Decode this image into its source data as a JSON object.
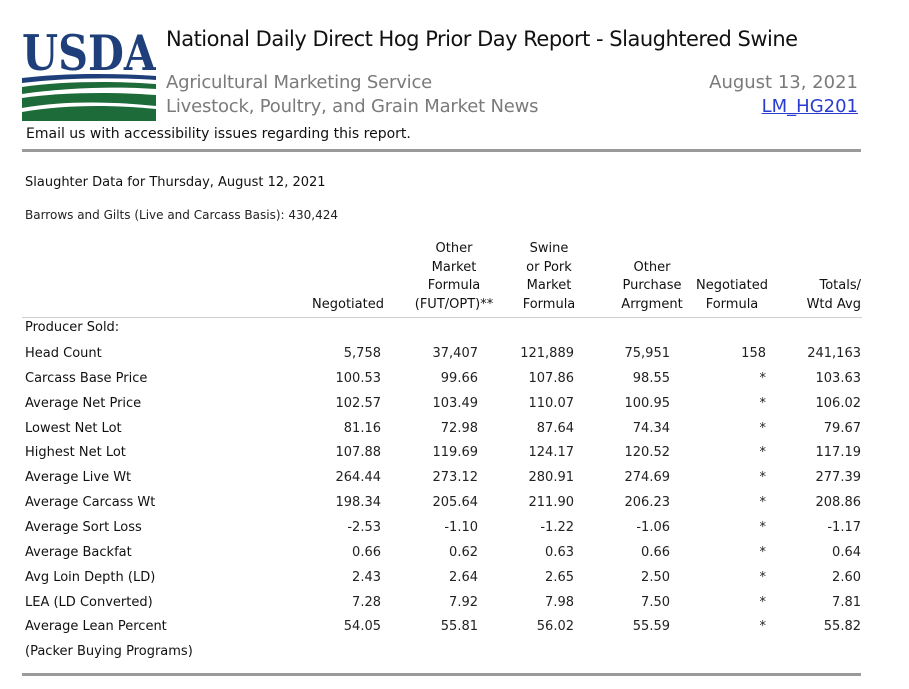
{
  "header": {
    "logo_text": "USDA",
    "title": "National Daily Direct Hog Prior Day Report - Slaughtered Swine",
    "agency": "Agricultural Marketing Service",
    "division": "Livestock, Poultry, and Grain Market News",
    "date": "August 13, 2021",
    "report_id": "LM_HG201",
    "email_note": "Email us with accessibility issues regarding this report."
  },
  "colors": {
    "usda_blue": "#1f3f7a",
    "usda_green": "#1e6b3a",
    "link_blue": "#2a3bd0",
    "muted_gray": "#7a7a7a",
    "rule_gray": "#9a9a9a"
  },
  "section_title": "Slaughter Data for Thursday, August 12, 2021",
  "barrows_gilts": "Barrows and Gilts (Live and Carcass Basis): 430,424",
  "columns": [
    [
      "Negotiated"
    ],
    [
      "Other",
      "Market",
      "Formula",
      "(FUT/OPT)**"
    ],
    [
      "Swine",
      "or Pork",
      "Market",
      "Formula"
    ],
    [
      "Other",
      "Purchase",
      "Arrgment"
    ],
    [
      "Negotiated",
      "Formula"
    ],
    [
      "Totals/",
      "Wtd Avg"
    ]
  ],
  "group_label": "Producer Sold:",
  "rows": [
    {
      "label": "Head Count",
      "values": [
        "5,758",
        "37,407",
        "121,889",
        "75,951",
        "158",
        "241,163"
      ]
    },
    {
      "label": "Carcass Base Price",
      "values": [
        "100.53",
        "99.66",
        "107.86",
        "98.55",
        "*",
        "103.63"
      ]
    },
    {
      "label": "Average Net Price",
      "values": [
        "102.57",
        "103.49",
        "110.07",
        "100.95",
        "*",
        "106.02"
      ]
    },
    {
      "label": "Lowest Net Lot",
      "values": [
        "81.16",
        "72.98",
        "87.64",
        "74.34",
        "*",
        "79.67"
      ]
    },
    {
      "label": "Highest Net Lot",
      "values": [
        "107.88",
        "119.69",
        "124.17",
        "120.52",
        "*",
        "117.19"
      ]
    },
    {
      "label": "Average Live Wt",
      "values": [
        "264.44",
        "273.12",
        "280.91",
        "274.69",
        "*",
        "277.39"
      ]
    },
    {
      "label": "Average Carcass Wt",
      "values": [
        "198.34",
        "205.64",
        "211.90",
        "206.23",
        "*",
        "208.86"
      ]
    },
    {
      "label": "Average Sort Loss",
      "values": [
        "-2.53",
        "-1.10",
        "-1.22",
        "-1.06",
        "*",
        "-1.17"
      ]
    },
    {
      "label": "Average Backfat",
      "values": [
        "0.66",
        "0.62",
        "0.63",
        "0.66",
        "*",
        "0.64"
      ]
    },
    {
      "label": "Avg Loin Depth (LD)",
      "values": [
        "2.43",
        "2.64",
        "2.65",
        "2.50",
        "*",
        "2.60"
      ]
    },
    {
      "label": "LEA (LD Converted)",
      "values": [
        "7.28",
        "7.92",
        "7.98",
        "7.50",
        "*",
        "7.81"
      ]
    },
    {
      "label": "Average Lean Percent",
      "values": [
        "54.05",
        "55.81",
        "56.02",
        "55.59",
        "*",
        "55.82"
      ]
    }
  ],
  "footer_label": "(Packer Buying Programs)"
}
